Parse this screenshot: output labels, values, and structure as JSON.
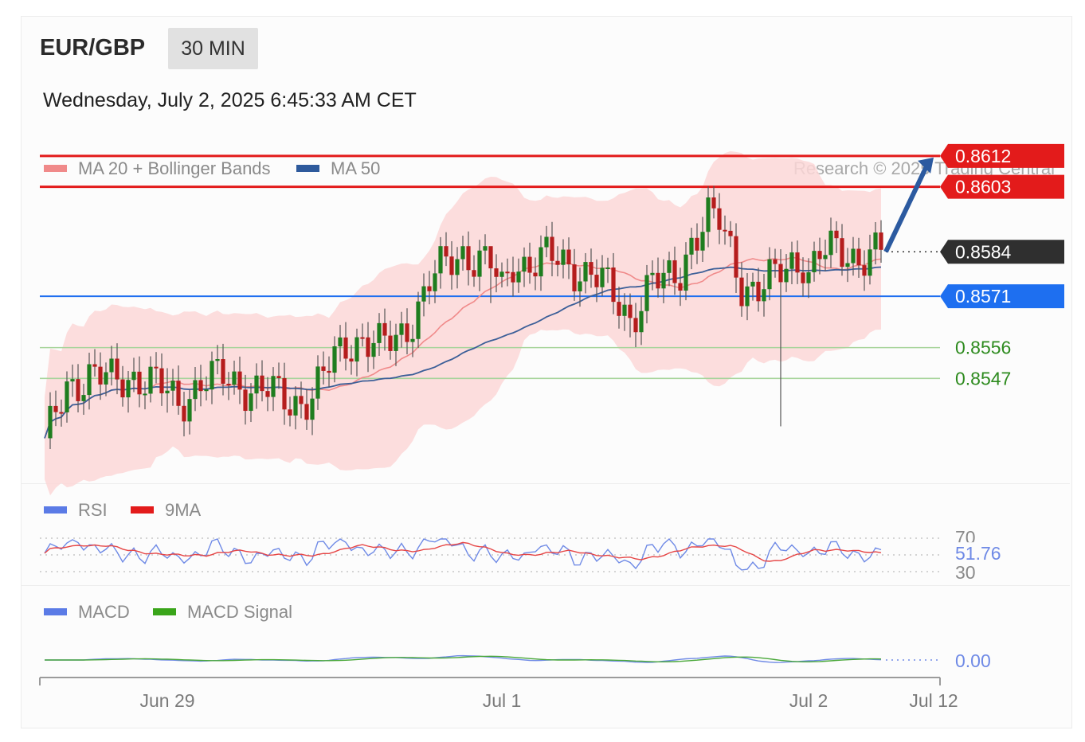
{
  "header": {
    "symbol": "EUR/GBP",
    "timeframe": "30 MIN",
    "datetime": "Wednesday, July 2, 2025 6:45:33 AM CET"
  },
  "legends": {
    "main": [
      {
        "label": "MA 20 + Bollinger Bands",
        "color": "#f08a8a"
      },
      {
        "label": "MA 50",
        "color": "#2e5a9c"
      }
    ],
    "rsi": [
      {
        "label": "RSI",
        "color": "#5b7be6"
      },
      {
        "label": "9MA",
        "color": "#e31b1b"
      }
    ],
    "macd": [
      {
        "label": "MACD",
        "color": "#5b7be6"
      },
      {
        "label": "MACD Signal",
        "color": "#3aa51a"
      }
    ]
  },
  "credit": "Research © 2025 Trading Central",
  "chart_data": {
    "type": "candlestick",
    "ylim": [
      0.8518,
      0.8625
    ],
    "x_ticks": [
      "Jun 29",
      "Jul 1",
      "Jul 2",
      "Jul 12"
    ],
    "levels": [
      {
        "label": "0.8612",
        "value": 0.8612,
        "kind": "resistance",
        "color": "#e31b1b"
      },
      {
        "label": "0.8603",
        "value": 0.8603,
        "kind": "resistance",
        "color": "#e31b1b"
      },
      {
        "label": "0.8584",
        "value": 0.8584,
        "kind": "last",
        "color": "#2f2f2f"
      },
      {
        "label": "0.8571",
        "value": 0.8571,
        "kind": "pivot",
        "color": "#1e6ff0"
      },
      {
        "label": "0.8556",
        "value": 0.8556,
        "kind": "support",
        "color": "#2e8b1f"
      },
      {
        "label": "0.8547",
        "value": 0.8547,
        "kind": "support",
        "color": "#2e8b1f"
      }
    ],
    "forecast": {
      "from": 0.8584,
      "to": 0.8612,
      "direction": "up"
    },
    "close_keypoints": [
      [
        0,
        0.8527
      ],
      [
        4,
        0.8545
      ],
      [
        8,
        0.8548
      ],
      [
        12,
        0.8546
      ],
      [
        16,
        0.8548
      ],
      [
        20,
        0.8545
      ],
      [
        24,
        0.854
      ],
      [
        28,
        0.8546
      ],
      [
        32,
        0.8547
      ],
      [
        36,
        0.8545
      ],
      [
        40,
        0.8543
      ],
      [
        44,
        0.854
      ],
      [
        48,
        0.8542
      ],
      [
        51,
        0.855
      ],
      [
        54,
        0.8557
      ],
      [
        57,
        0.8559
      ],
      [
        60,
        0.8556
      ],
      [
        63,
        0.8558
      ],
      [
        66,
        0.8565
      ],
      [
        69,
        0.8575
      ],
      [
        72,
        0.858
      ],
      [
        75,
        0.8584
      ],
      [
        78,
        0.8582
      ],
      [
        80,
        0.858
      ],
      [
        82,
        0.8572
      ],
      [
        84,
        0.8581
      ],
      [
        87,
        0.8581
      ],
      [
        90,
        0.8582
      ],
      [
        94,
        0.858
      ],
      [
        98,
        0.8578
      ],
      [
        100,
        0.8575
      ],
      [
        102,
        0.857
      ],
      [
        105,
        0.8565
      ],
      [
        107,
        0.857
      ],
      [
        109,
        0.8576
      ],
      [
        111,
        0.8574
      ],
      [
        114,
        0.8578
      ],
      [
        116,
        0.8588
      ],
      [
        119,
        0.8594
      ],
      [
        121,
        0.8592
      ],
      [
        123,
        0.8584
      ],
      [
        125,
        0.8575
      ],
      [
        128,
        0.8573
      ],
      [
        131,
        0.8576
      ],
      [
        134,
        0.8581
      ],
      [
        136,
        0.8582
      ],
      [
        137,
        0.8578
      ],
      [
        139,
        0.8583
      ],
      [
        142,
        0.8584
      ],
      [
        146,
        0.8583
      ],
      [
        150,
        0.8584
      ]
    ],
    "wicks": [
      {
        "i": 0,
        "low": 0.8522
      },
      {
        "i": 22,
        "high": 0.855,
        "low": 0.8537
      },
      {
        "i": 80,
        "high": 0.8583,
        "low": 0.8569
      },
      {
        "i": 105,
        "low": 0.8559
      },
      {
        "i": 132,
        "low": 0.8533
      }
    ],
    "rsi": {
      "latest_label": "51.76",
      "latest": 51.76,
      "levels": [
        "70",
        "30"
      ]
    },
    "macd": {
      "latest_label": "0.00",
      "latest": 0.0
    }
  }
}
